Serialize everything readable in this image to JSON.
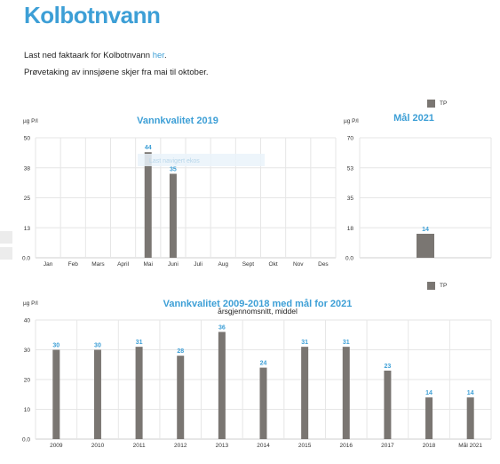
{
  "page": {
    "title": "Kolbotnvann",
    "factsheet_text": "Last ned faktaark for Kolbotnvann",
    "factsheet_link": "her",
    "factsheet_end": ".",
    "sampling_text": "Prøvetaking av innsjøene skjer fra mai til oktober."
  },
  "colors": {
    "accent": "#3d9fd6",
    "bar": "#7a7672"
  },
  "chart_data": [
    {
      "type": "bar",
      "title": "Vannkvalitet 2019",
      "ylabel": "µg P/l",
      "categories": [
        "Jan",
        "Feb",
        "Mars",
        "April",
        "Mai",
        "Juni",
        "Juli",
        "Aug",
        "Sept",
        "Okt",
        "Nov",
        "Des"
      ],
      "series": [
        {
          "values": [
            null,
            null,
            null,
            null,
            44,
            35,
            null,
            null,
            null,
            null,
            null,
            null
          ]
        }
      ],
      "yticks": [
        "0.0",
        "13",
        "25",
        "38",
        "50"
      ],
      "ylim": [
        0,
        50
      ],
      "grid": true,
      "overlay_text": "Last navigert ekos"
    },
    {
      "type": "bar",
      "title": "Mål 2021",
      "ylabel": "µg P/l",
      "categories": [
        ""
      ],
      "series": [
        {
          "name": "TP",
          "values": [
            14
          ]
        }
      ],
      "yticks": [
        "0.0",
        "18",
        "35",
        "53",
        "70"
      ],
      "ylim": [
        0,
        70
      ],
      "legend": "top-right",
      "grid": true
    },
    {
      "type": "bar",
      "title": "Vannkvalitet 2009-2018 med mål for 2021",
      "subtitle": "årsgjennomsnitt, middel",
      "ylabel": "µg P/l",
      "categories": [
        "2009",
        "2010",
        "2011",
        "2012",
        "2013",
        "2014",
        "2015",
        "2016",
        "2017",
        "2018",
        "Mål 2021"
      ],
      "series": [
        {
          "name": "TP",
          "values": [
            30,
            30,
            31,
            28,
            36,
            24,
            31,
            31,
            23,
            14,
            14
          ]
        }
      ],
      "yticks": [
        "0.0",
        "10",
        "20",
        "30",
        "40"
      ],
      "ylim": [
        0,
        40
      ],
      "legend": "top-right",
      "grid": true
    }
  ]
}
